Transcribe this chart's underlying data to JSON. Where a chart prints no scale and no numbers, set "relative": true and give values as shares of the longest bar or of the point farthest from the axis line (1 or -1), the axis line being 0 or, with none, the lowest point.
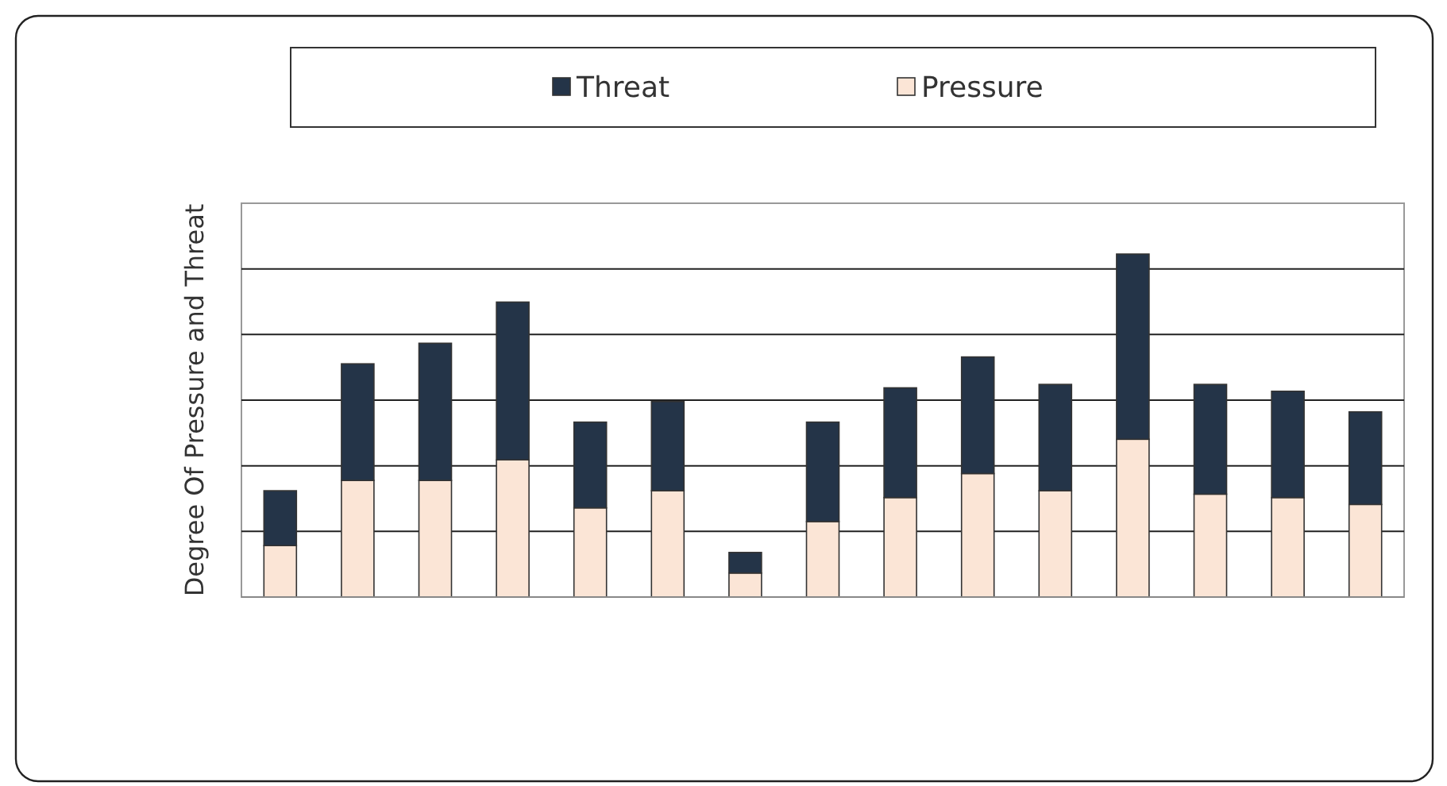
{
  "chart_data": {
    "type": "bar",
    "ylabel": "Degree  Of Pressure and Threat",
    "stacked": true,
    "relative": true,
    "grid": "y",
    "legend": "top",
    "categories": [
      null,
      null,
      null,
      null,
      null,
      null,
      null,
      null,
      null,
      null,
      null,
      null,
      null,
      null,
      null
    ],
    "series": [
      {
        "name": "Pressure",
        "color": "#fbe5d6",
        "values": [
          0.15,
          0.34,
          0.34,
          0.4,
          0.26,
          0.31,
          0.07,
          0.22,
          0.29,
          0.36,
          0.31,
          0.46,
          0.3,
          0.29,
          0.27
        ]
      },
      {
        "name": "Threat",
        "color": "#243448",
        "values": [
          0.16,
          0.34,
          0.4,
          0.46,
          0.25,
          0.26,
          0.06,
          0.29,
          0.32,
          0.34,
          0.31,
          0.54,
          0.32,
          0.31,
          0.27
        ]
      }
    ]
  }
}
